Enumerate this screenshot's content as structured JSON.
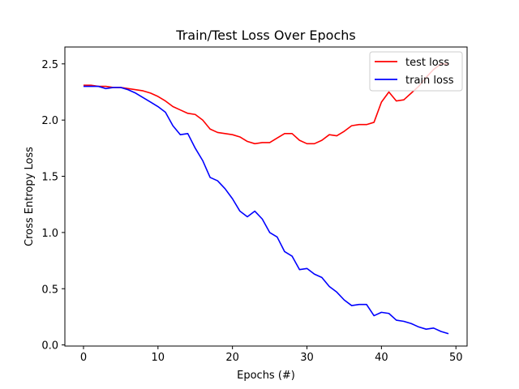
{
  "chart_data": {
    "type": "line",
    "title": "Train/Test Loss Over Epochs",
    "xlabel": "Epochs (#)",
    "ylabel": "Cross Entropy Loss",
    "xlim": [
      -2.5,
      51.5
    ],
    "ylim": [
      -0.01,
      2.65
    ],
    "xticks": [
      0,
      10,
      20,
      30,
      40,
      50
    ],
    "yticks": [
      0.0,
      0.5,
      1.0,
      1.5,
      2.0,
      2.5
    ],
    "ytick_labels": [
      "0.0",
      "0.5",
      "1.0",
      "1.5",
      "2.0",
      "2.5"
    ],
    "legend_position": "top-right",
    "grid": false,
    "x": [
      0,
      1,
      2,
      3,
      4,
      5,
      6,
      7,
      8,
      9,
      10,
      11,
      12,
      13,
      14,
      15,
      16,
      17,
      18,
      19,
      20,
      21,
      22,
      23,
      24,
      25,
      26,
      27,
      28,
      29,
      30,
      31,
      32,
      33,
      34,
      35,
      36,
      37,
      38,
      39,
      40,
      41,
      42,
      43,
      44,
      45,
      46,
      47,
      48,
      49
    ],
    "series": [
      {
        "name": "test loss",
        "color": "#ff0000",
        "values": [
          2.31,
          2.31,
          2.3,
          2.3,
          2.29,
          2.29,
          2.28,
          2.27,
          2.26,
          2.24,
          2.21,
          2.17,
          2.12,
          2.09,
          2.06,
          2.05,
          2.0,
          1.92,
          1.89,
          1.88,
          1.87,
          1.85,
          1.81,
          1.79,
          1.8,
          1.8,
          1.84,
          1.88,
          1.88,
          1.82,
          1.79,
          1.79,
          1.82,
          1.87,
          1.86,
          1.9,
          1.95,
          1.96,
          1.96,
          1.98,
          2.16,
          2.25,
          2.17,
          2.18,
          2.24,
          2.3,
          2.38,
          2.45,
          2.5,
          2.5
        ]
      },
      {
        "name": "train loss",
        "color": "#0000ff",
        "values": [
          2.3,
          2.3,
          2.3,
          2.28,
          2.29,
          2.29,
          2.27,
          2.24,
          2.2,
          2.16,
          2.12,
          2.07,
          1.95,
          1.87,
          1.88,
          1.75,
          1.64,
          1.49,
          1.46,
          1.39,
          1.3,
          1.19,
          1.14,
          1.19,
          1.12,
          1.0,
          0.96,
          0.83,
          0.79,
          0.67,
          0.68,
          0.63,
          0.6,
          0.52,
          0.47,
          0.4,
          0.35,
          0.36,
          0.36,
          0.26,
          0.29,
          0.28,
          0.22,
          0.21,
          0.19,
          0.16,
          0.14,
          0.15,
          0.12,
          0.1
        ]
      }
    ]
  }
}
